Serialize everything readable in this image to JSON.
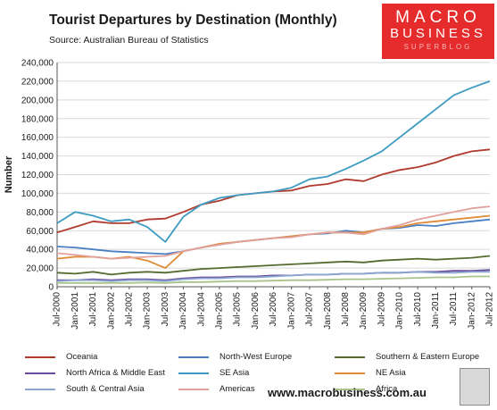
{
  "header": {
    "title": "Tourist Departures by Destination (Monthly)",
    "subtitle": "Source: Australian Bureau of Statistics"
  },
  "logo": {
    "line1": "MACRO",
    "line2": "BUSINESS",
    "line3": "SUPERBLOG"
  },
  "footer": {
    "url": "www.macrobusiness.com.au"
  },
  "chart_data": {
    "type": "line",
    "title": "Tourist Departures by Destination (Monthly)",
    "xlabel": "",
    "ylabel": "Number",
    "ylim": [
      0,
      240000
    ],
    "yticks": [
      0,
      20000,
      40000,
      60000,
      80000,
      100000,
      120000,
      140000,
      160000,
      180000,
      200000,
      220000,
      240000
    ],
    "ytick_labels": [
      "0",
      "20,000",
      "40,000",
      "60,000",
      "80,000",
      "100,000",
      "120,000",
      "140,000",
      "160,000",
      "180,000",
      "200,000",
      "220,000",
      "240,000"
    ],
    "x": [
      "Jul-2000",
      "Jan-2001",
      "Jul-2001",
      "Jan-2002",
      "Jul-2002",
      "Jan-2003",
      "Jul-2003",
      "Jan-2004",
      "Jul-2004",
      "Jan-2005",
      "Jul-2005",
      "Jan-2006",
      "Jul-2006",
      "Jan-2007",
      "Jul-2007",
      "Jan-2008",
      "Jul-2008",
      "Jan-2009",
      "Jul-2009",
      "Jan-2010",
      "Jul-2010",
      "Jan-2011",
      "Jul-2011",
      "Jan-2012",
      "Jul-2012"
    ],
    "grid": true,
    "legend_position": "bottom",
    "series": [
      {
        "name": "Oceania",
        "color": "#b03a2e",
        "values": [
          58000,
          64000,
          70000,
          68000,
          68000,
          72000,
          73000,
          80000,
          88000,
          92000,
          98000,
          100000,
          102000,
          103000,
          108000,
          110000,
          115000,
          113000,
          120000,
          125000,
          128000,
          133000,
          140000,
          145000,
          147000
        ]
      },
      {
        "name": "North-West Europe",
        "color": "#4a7fc4",
        "values": [
          43000,
          42000,
          40000,
          38000,
          37000,
          36000,
          35000,
          38000,
          42000,
          45000,
          48000,
          50000,
          52000,
          54000,
          56000,
          57000,
          60000,
          58000,
          62000,
          63000,
          66000,
          65000,
          68000,
          70000,
          72000
        ]
      },
      {
        "name": "Southern & Eastern Europe",
        "color": "#556b2f",
        "values": [
          15000,
          14000,
          16000,
          13000,
          15000,
          16000,
          15000,
          17000,
          19000,
          20000,
          21000,
          22000,
          23000,
          24000,
          25000,
          26000,
          27000,
          26000,
          28000,
          29000,
          30000,
          29000,
          30000,
          31000,
          33000
        ]
      },
      {
        "name": "North Africa & Middle East",
        "color": "#6b4a9c",
        "values": [
          7000,
          7000,
          8000,
          7000,
          8000,
          8000,
          7000,
          9000,
          10000,
          10000,
          11000,
          11000,
          12000,
          12000,
          13000,
          13000,
          14000,
          14000,
          15000,
          15000,
          16000,
          16000,
          17000,
          17000,
          18000
        ]
      },
      {
        "name": "SE Asia",
        "color": "#3e9bc1",
        "values": [
          68000,
          80000,
          76000,
          70000,
          72000,
          64000,
          48000,
          75000,
          88000,
          95000,
          98000,
          100000,
          102000,
          106000,
          115000,
          118000,
          126000,
          135000,
          145000,
          160000,
          175000,
          190000,
          205000,
          213000,
          220000
        ]
      },
      {
        "name": "NE Asia",
        "color": "#e08a35",
        "values": [
          30000,
          32000,
          32000,
          30000,
          32000,
          28000,
          20000,
          38000,
          42000,
          46000,
          48000,
          50000,
          52000,
          54000,
          56000,
          58000,
          58000,
          58000,
          62000,
          64000,
          68000,
          70000,
          72000,
          74000,
          76000
        ]
      },
      {
        "name": "South & Central Asia",
        "color": "#8aa7d0",
        "values": [
          6000,
          7000,
          7000,
          6000,
          7000,
          7000,
          6000,
          8000,
          9000,
          9000,
          10000,
          10000,
          11000,
          12000,
          13000,
          13000,
          14000,
          14000,
          15000,
          15000,
          16000,
          15000,
          15000,
          16000,
          16000
        ]
      },
      {
        "name": "Americas",
        "color": "#e2a09a",
        "values": [
          36000,
          34000,
          32000,
          30000,
          31000,
          32000,
          33000,
          38000,
          42000,
          45000,
          48000,
          50000,
          52000,
          53000,
          56000,
          58000,
          58000,
          56000,
          62000,
          66000,
          72000,
          76000,
          80000,
          84000,
          86000
        ]
      },
      {
        "name": "Africa",
        "color": "#a8c48a",
        "values": [
          4000,
          4000,
          4000,
          4000,
          4000,
          4500,
          4000,
          5000,
          5000,
          5500,
          6000,
          6000,
          6500,
          7000,
          7000,
          7500,
          8000,
          8000,
          8500,
          9000,
          9500,
          10000,
          10000,
          11000,
          11000
        ]
      }
    ]
  }
}
